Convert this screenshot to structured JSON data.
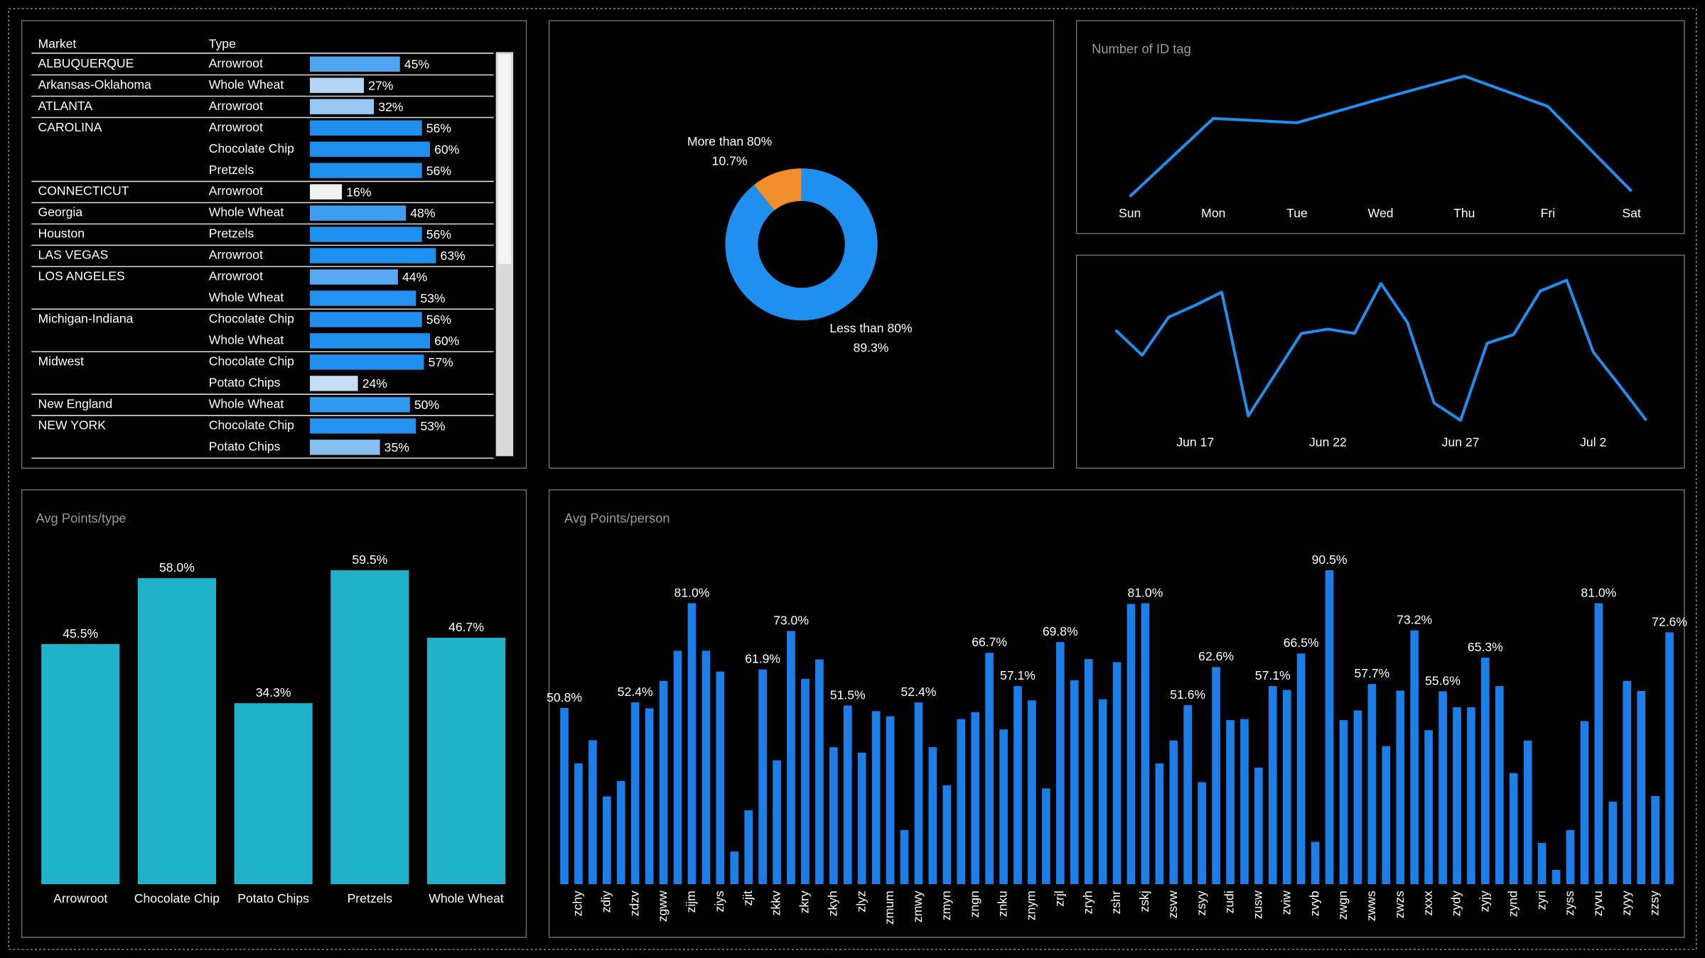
{
  "table": {
    "columns": [
      "Market",
      "Type"
    ],
    "rows": [
      {
        "market": "ALBUQUERQUE",
        "type": "Arrowroot",
        "value": 45,
        "label": "45%"
      },
      {
        "market": "Arkansas-Oklahoma",
        "type": "Whole Wheat",
        "value": 27,
        "label": "27%"
      },
      {
        "market": "ATLANTA",
        "type": "Arrowroot",
        "value": 32,
        "label": "32%"
      },
      {
        "market": "CAROLINA",
        "type": "Arrowroot",
        "value": 56,
        "label": "56%"
      },
      {
        "market": null,
        "type": "Chocolate Chip",
        "value": 60,
        "label": "60%"
      },
      {
        "market": null,
        "type": "Pretzels",
        "value": 56,
        "label": "56%"
      },
      {
        "market": "CONNECTICUT",
        "type": "Arrowroot",
        "value": 16,
        "label": "16%"
      },
      {
        "market": "Georgia",
        "type": "Whole Wheat",
        "value": 48,
        "label": "48%"
      },
      {
        "market": "Houston",
        "type": "Pretzels",
        "value": 56,
        "label": "56%"
      },
      {
        "market": "LAS VEGAS",
        "type": "Arrowroot",
        "value": 63,
        "label": "63%"
      },
      {
        "market": "LOS ANGELES",
        "type": "Arrowroot",
        "value": 44,
        "label": "44%"
      },
      {
        "market": null,
        "type": "Whole Wheat",
        "value": 53,
        "label": "53%"
      },
      {
        "market": "Michigan-Indiana",
        "type": "Chocolate Chip",
        "value": 56,
        "label": "56%"
      },
      {
        "market": null,
        "type": "Whole Wheat",
        "value": 60,
        "label": "60%"
      },
      {
        "market": "Midwest",
        "type": "Chocolate Chip",
        "value": 57,
        "label": "57%"
      },
      {
        "market": null,
        "type": "Potato Chips",
        "value": 24,
        "label": "24%"
      },
      {
        "market": "New England",
        "type": "Whole Wheat",
        "value": 50,
        "label": "50%"
      },
      {
        "market": "NEW YORK",
        "type": "Chocolate Chip",
        "value": 53,
        "label": "53%"
      },
      {
        "market": null,
        "type": "Potato Chips",
        "value": 35,
        "label": "35%"
      }
    ]
  },
  "chart_data": [
    {
      "type": "pie",
      "donut": true,
      "categories": [
        "More than 80%",
        "Less than 80%"
      ],
      "values": [
        10.7,
        89.3
      ],
      "value_labels": [
        "10.7%",
        "89.3%"
      ],
      "colors": [
        "#f28e2b",
        "#1f8ff0"
      ]
    },
    {
      "type": "line",
      "title": "Number of ID tag",
      "categories": [
        "Sun",
        "Mon",
        "Tue",
        "Wed",
        "Thu",
        "Fri",
        "Sat"
      ],
      "values": [
        19,
        91,
        87,
        109,
        130,
        102,
        24
      ],
      "ylim": [
        0,
        150
      ],
      "color": "#1f8ff0"
    },
    {
      "type": "line",
      "categories": [
        null,
        null,
        null,
        "Jun 17",
        null,
        null,
        null,
        null,
        "Jun 22",
        null,
        null,
        null,
        null,
        "Jun 27",
        null,
        null,
        null,
        null,
        "Jul 2",
        null,
        null
      ],
      "values": [
        96,
        73,
        108,
        119,
        131,
        17,
        55,
        93,
        97,
        93,
        139,
        103,
        29,
        13,
        84,
        92,
        132,
        142,
        76,
        45,
        13
      ],
      "ylim": [
        0,
        150
      ],
      "color": "#1f8ff0"
    },
    {
      "type": "bar",
      "title": "Avg Points/type",
      "categories": [
        "Arrowroot",
        "Chocolate Chip",
        "Potato Chips",
        "Pretzels",
        "Whole Wheat"
      ],
      "values": [
        45.5,
        58.0,
        34.3,
        59.5,
        46.7
      ],
      "value_labels": [
        "45.5%",
        "58.0%",
        "34.3%",
        "59.5%",
        "46.7%"
      ],
      "ylim": [
        0,
        70
      ],
      "color": "#1fb2c8"
    },
    {
      "type": "bar",
      "title": "Avg Points/person",
      "categories": [
        null,
        "zchy",
        null,
        "zdiy",
        null,
        "zdzv",
        null,
        "zgww",
        null,
        "zijm",
        null,
        "ziys",
        null,
        "zjit",
        null,
        "zkkv",
        null,
        "zkry",
        null,
        "zkyh",
        null,
        "zlyz",
        null,
        "zmum",
        null,
        "zmwy",
        null,
        "zmyn",
        null,
        "zngn",
        null,
        "znku",
        null,
        "znym",
        null,
        "zrjl",
        null,
        "zryh",
        null,
        "zshr",
        null,
        "zskj",
        null,
        "zsvw",
        null,
        "zsyy",
        null,
        "zudi",
        null,
        "zusw",
        null,
        "zviw",
        null,
        "zvyb",
        null,
        "zwgn",
        null,
        "zwws",
        null,
        "zwzs",
        null,
        "zxxx",
        null,
        "zydy",
        null,
        "zyjy",
        null,
        "zynd",
        null,
        "zyri",
        null,
        "zyss",
        null,
        "zyvu",
        null,
        "zyyy",
        null,
        "zzsy",
        null
      ],
      "values": [
        50.8,
        34.8,
        41.5,
        25.3,
        29.7,
        52.4,
        50.7,
        58.6,
        67.3,
        81.0,
        67.3,
        61.3,
        9.4,
        21.3,
        61.9,
        35.7,
        73.0,
        59.2,
        64.8,
        39.5,
        51.5,
        37.9,
        49.9,
        48.4,
        15.6,
        52.4,
        39.5,
        28.5,
        47.6,
        49.6,
        66.7,
        44.6,
        57.1,
        53.0,
        27.6,
        69.8,
        58.8,
        64.9,
        53.3,
        64.0,
        80.8,
        81.0,
        34.8,
        41.4,
        51.6,
        29.4,
        62.6,
        47.3,
        47.6,
        33.6,
        57.1,
        56.0,
        66.5,
        12.2,
        90.5,
        47.3,
        50.1,
        57.7,
        39.8,
        55.8,
        73.2,
        44.4,
        55.6,
        51.0,
        51.0,
        65.3,
        57.1,
        32.0,
        41.4,
        11.9,
        4.1,
        15.6,
        47.0,
        81.0,
        23.8,
        58.6,
        55.7,
        25.4,
        72.6
      ],
      "value_labels": [
        "50.8%",
        null,
        null,
        null,
        null,
        "52.4%",
        null,
        null,
        null,
        "81.0%",
        null,
        null,
        null,
        null,
        "61.9%",
        null,
        "73.0%",
        null,
        null,
        null,
        "51.5%",
        null,
        null,
        null,
        null,
        "52.4%",
        null,
        null,
        null,
        null,
        "66.7%",
        null,
        "57.1%",
        null,
        null,
        "69.8%",
        null,
        null,
        null,
        null,
        null,
        "81.0%",
        null,
        null,
        "51.6%",
        null,
        "62.6%",
        null,
        null,
        null,
        "57.1%",
        null,
        "66.5%",
        null,
        "90.5%",
        null,
        null,
        "57.7%",
        null,
        null,
        "73.2%",
        null,
        "55.6%",
        null,
        null,
        "65.3%",
        null,
        null,
        null,
        null,
        null,
        null,
        null,
        "81.0%",
        null,
        null,
        null,
        null,
        "72.6%"
      ],
      "ylim": [
        0,
        100
      ],
      "color": "#1c7ee8"
    }
  ]
}
